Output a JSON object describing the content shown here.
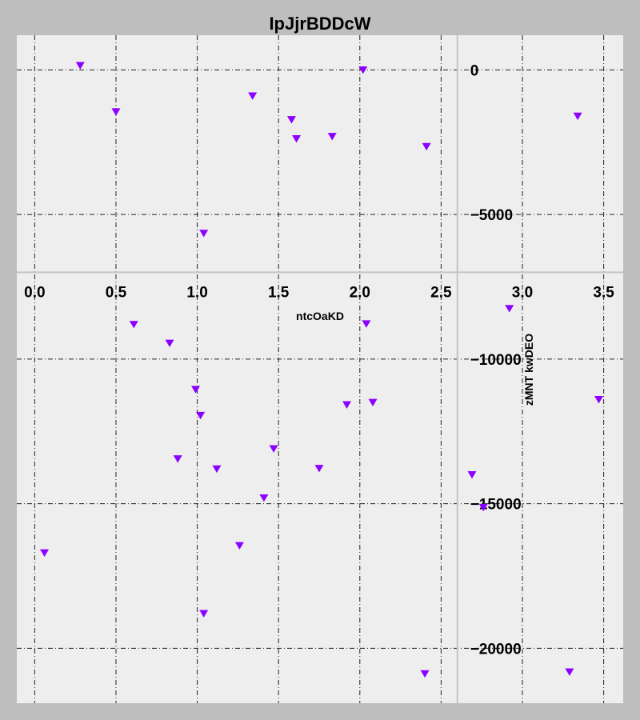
{
  "chart_data": {
    "type": "scatter",
    "title": "IpJjrBDDcW",
    "xlabel": "ntcOaKD",
    "ylabel": "zMNT kwDEO",
    "xlim": [
      -0.11,
      3.62
    ],
    "ylim": [
      -21900,
      1200
    ],
    "x_ticks": [
      "0.0",
      "0.5",
      "1.0",
      "1.5",
      "2.0",
      "2.5",
      "3.0",
      "3.5"
    ],
    "y_ticks": [
      "0",
      "−5000",
      "−10000",
      "−15000",
      "−20000"
    ],
    "x_tick_values": [
      0,
      0.5,
      1.0,
      1.5,
      2.0,
      2.5,
      3.0,
      3.5
    ],
    "y_tick_values": [
      0,
      -5000,
      -10000,
      -15000,
      -20000
    ],
    "grid": true,
    "spine_position": "x-axis at y=-7000, y-axis at x=2.6",
    "marker": "triangle-down",
    "marker_color": "#8b00ff",
    "background_color": "#eeeeee",
    "figure_color": "#bebebe",
    "series": [
      {
        "points": [
          [
            0.28,
            150
          ],
          [
            0.5,
            -1450
          ],
          [
            1.34,
            -900
          ],
          [
            1.58,
            -1720
          ],
          [
            1.61,
            -2380
          ],
          [
            1.83,
            -2300
          ],
          [
            2.02,
            0
          ],
          [
            2.41,
            -2650
          ],
          [
            3.34,
            -1600
          ],
          [
            1.04,
            -5650
          ],
          [
            0.06,
            -16700
          ],
          [
            0.61,
            -8800
          ],
          [
            0.83,
            -9450
          ],
          [
            0.99,
            -11050
          ],
          [
            1.02,
            -11950
          ],
          [
            0.88,
            -13450
          ],
          [
            1.12,
            -13800
          ],
          [
            1.47,
            -13100
          ],
          [
            1.41,
            -14800
          ],
          [
            1.26,
            -16450
          ],
          [
            1.04,
            -18800
          ],
          [
            1.75,
            -13780
          ],
          [
            1.92,
            -11580
          ],
          [
            2.04,
            -8780
          ],
          [
            2.08,
            -11500
          ],
          [
            2.4,
            -20880
          ],
          [
            2.69,
            -14000
          ],
          [
            2.76,
            -15130
          ],
          [
            2.92,
            -8250
          ],
          [
            3.29,
            -20820
          ],
          [
            3.47,
            -11400
          ]
        ]
      }
    ]
  }
}
